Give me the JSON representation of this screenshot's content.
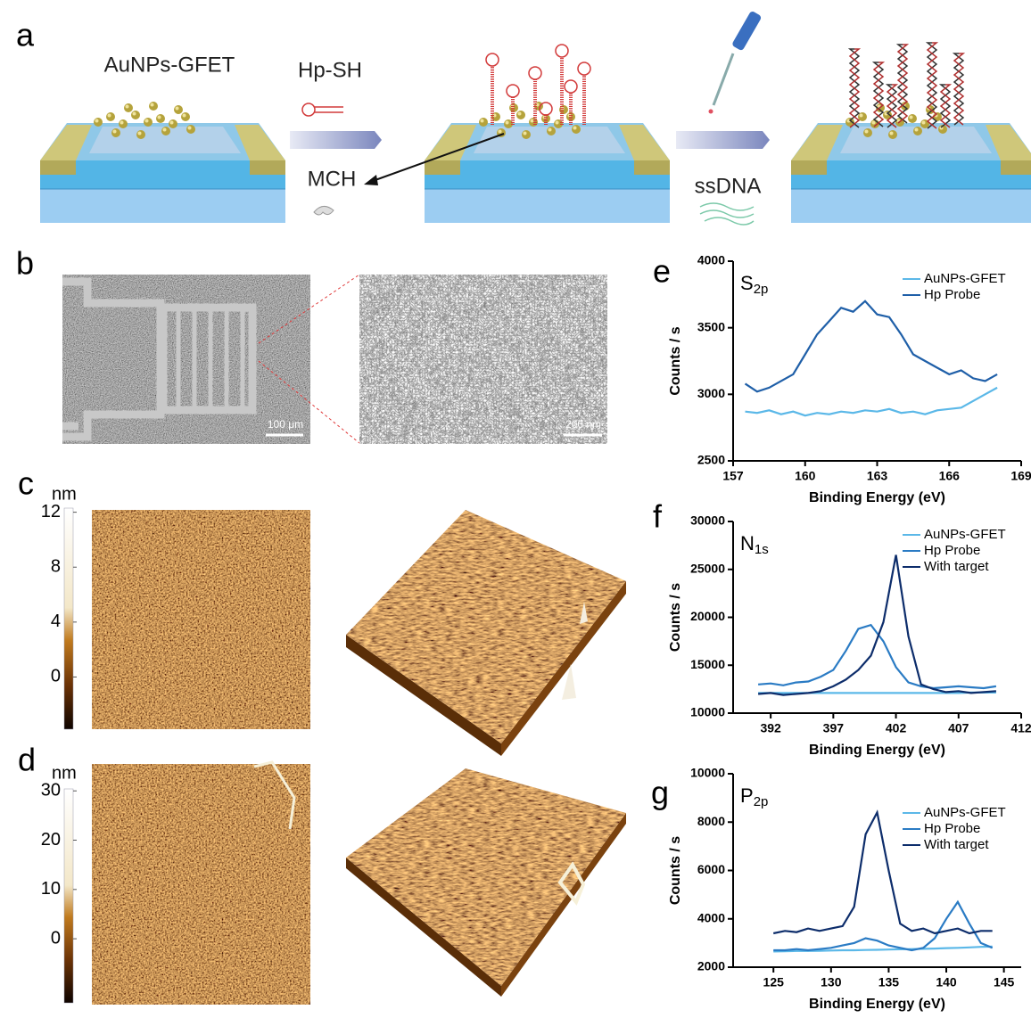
{
  "panel_labels": [
    "a",
    "b",
    "c",
    "d",
    "e",
    "f",
    "g"
  ],
  "schematic": {
    "device_label": "AuNPs-GFET",
    "step1": "Hp-SH",
    "blocker": "MCH",
    "step2": "ssDNA"
  },
  "sem": {
    "scale_bars": [
      "100 μm",
      "200 nm"
    ]
  },
  "afm": [
    {
      "unit": "nm",
      "colorbar_lim": [
        -3.8,
        12.3
      ],
      "colorbar_ticks": [
        0,
        4,
        8,
        12
      ]
    },
    {
      "unit": "nm",
      "colorbar_lim": [
        -13,
        30.4
      ],
      "colorbar_ticks": [
        0,
        10,
        20,
        30
      ]
    }
  ],
  "chart_data": [
    {
      "type": "line",
      "annotation": [
        "S",
        "2p"
      ],
      "xlabel": "Binding Energy (eV)",
      "ylabel": "Counts / s",
      "xlim": [
        157,
        169
      ],
      "xticks": [
        157,
        160,
        163,
        166,
        169
      ],
      "ylim": [
        2500,
        4000
      ],
      "yticks": [
        2500,
        3000,
        3500,
        4000
      ],
      "x": [
        157.5,
        158,
        158.5,
        159,
        159.5,
        160,
        160.5,
        161,
        161.5,
        162,
        162.5,
        163,
        163.5,
        164,
        164.5,
        165,
        165.5,
        166,
        166.5,
        167,
        167.5,
        168
      ],
      "series": [
        {
          "name": "AuNPs-GFET",
          "color": "#5bb8e8",
          "values": [
            2870,
            2860,
            2880,
            2850,
            2870,
            2840,
            2860,
            2850,
            2870,
            2860,
            2880,
            2870,
            2890,
            2860,
            2870,
            2850,
            2880,
            2890,
            2900,
            2950,
            3000,
            3050
          ]
        },
        {
          "name": "Hp Probe",
          "color": "#1f5fa8",
          "values": [
            3080,
            3020,
            3050,
            3100,
            3150,
            3300,
            3450,
            3550,
            3650,
            3620,
            3700,
            3600,
            3580,
            3450,
            3300,
            3250,
            3200,
            3150,
            3180,
            3120,
            3100,
            3150
          ]
        }
      ]
    },
    {
      "type": "line",
      "annotation": [
        "N",
        "1s"
      ],
      "xlabel": "Binding Energy (eV)",
      "ylabel": "Counts / s",
      "xlim": [
        389,
        412
      ],
      "xticks": [
        392,
        397,
        402,
        407,
        412
      ],
      "ylim": [
        10000,
        30000
      ],
      "yticks": [
        10000,
        15000,
        20000,
        25000,
        30000
      ],
      "x": [
        391,
        392,
        393,
        394,
        395,
        396,
        397,
        398,
        399,
        400,
        401,
        402,
        403,
        404,
        405,
        406,
        407,
        408,
        409,
        410
      ],
      "series": [
        {
          "name": "AuNPs-GFET",
          "color": "#5bb8e8",
          "values": [
            12100,
            12100,
            12100,
            12100,
            12100,
            12100,
            12100,
            12100,
            12100,
            12100,
            12100,
            12100,
            12100,
            12100,
            12100,
            12100,
            12100,
            12150,
            12150,
            12150
          ]
        },
        {
          "name": "Hp Probe",
          "color": "#2a7bc4",
          "values": [
            13000,
            13100,
            12900,
            13200,
            13300,
            13800,
            14500,
            16500,
            18800,
            19200,
            17500,
            14800,
            13200,
            12800,
            12600,
            12700,
            12800,
            12700,
            12600,
            12800
          ]
        },
        {
          "name": "With target",
          "color": "#0d2d6b",
          "values": [
            12000,
            12100,
            11900,
            12000,
            12100,
            12300,
            12800,
            13500,
            14500,
            16000,
            19500,
            26500,
            18000,
            13000,
            12500,
            12200,
            12300,
            12100,
            12200,
            12300
          ]
        }
      ]
    },
    {
      "type": "line",
      "annotation": [
        "P",
        "2p"
      ],
      "xlabel": "Binding Energy (eV)",
      "ylabel": "Counts / s",
      "xlim": [
        121.5,
        146.5
      ],
      "xticks": [
        125,
        130,
        135,
        140,
        145
      ],
      "ylim": [
        2000,
        10000
      ],
      "yticks": [
        2000,
        4000,
        6000,
        8000,
        10000
      ],
      "x": [
        125,
        126,
        127,
        128,
        129,
        130,
        131,
        132,
        133,
        134,
        135,
        136,
        137,
        138,
        139,
        140,
        141,
        142,
        143,
        144
      ],
      "series": [
        {
          "name": "AuNPs-GFET",
          "color": "#5bb8e8",
          "values": [
            2650,
            2660,
            2670,
            2670,
            2680,
            2690,
            2700,
            2700,
            2710,
            2720,
            2730,
            2740,
            2750,
            2760,
            2770,
            2790,
            2800,
            2820,
            2840,
            2850
          ]
        },
        {
          "name": "Hp Probe",
          "color": "#2a7bc4",
          "values": [
            2700,
            2700,
            2750,
            2700,
            2750,
            2800,
            2900,
            3000,
            3200,
            3100,
            2900,
            2800,
            2700,
            2800,
            3200,
            4000,
            4700,
            3800,
            3000,
            2800
          ]
        },
        {
          "name": "With target",
          "color": "#0d2d6b",
          "values": [
            3400,
            3500,
            3450,
            3600,
            3500,
            3600,
            3700,
            4500,
            7500,
            8400,
            6000,
            3800,
            3500,
            3600,
            3400,
            3500,
            3600,
            3400,
            3500,
            3500
          ]
        }
      ]
    }
  ]
}
